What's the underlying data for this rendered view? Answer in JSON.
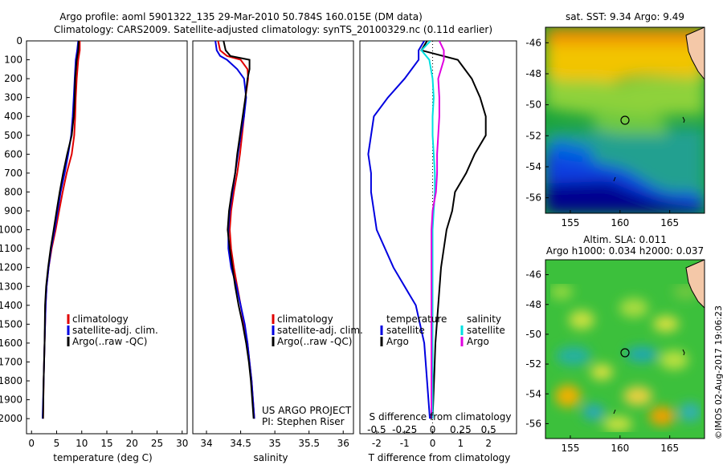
{
  "header": {
    "title_line1": "Argo profile: aoml 5901322_135 29-Mar-2010 50.784S 160.015E (DM data)",
    "title_line2": "Climatology: CARS2009. Satellite-adjusted climatology: synTS_20100329.nc (0.11d earlier)"
  },
  "colors": {
    "climatology": "#e00000",
    "satellite": "#0000e0",
    "argo": "#000000",
    "sat_salinity": "#00e0e0",
    "argo_salinity": "#e000e0"
  },
  "footer": {
    "project": "US ARGO PROJECT",
    "pi": "PI: Stephen Riser",
    "timestamp": "©IMOS 02-Aug-2017 19:06:23"
  },
  "legend_temp": {
    "items": [
      "climatology",
      "satellite-adj. clim.",
      "Argo(..raw -QC)"
    ]
  },
  "legend_sal": {
    "items": [
      "climatology",
      "satellite-adj. clim.",
      "Argo(..raw -QC)"
    ]
  },
  "legend_diff": {
    "temperature": "temperature",
    "salinity": "salinity",
    "satellite": "satellite",
    "argo": "Argo"
  },
  "chart_data": [
    {
      "type": "line",
      "xlabel": "temperature (deg C)",
      "ylim": [
        0,
        2080
      ],
      "xlim": [
        -1,
        31
      ],
      "xticks": [
        "0",
        "5",
        "10",
        "15",
        "20",
        "25",
        "30"
      ],
      "yticks": [
        "0",
        "100",
        "200",
        "300",
        "400",
        "500",
        "600",
        "700",
        "800",
        "900",
        "1000",
        "1100",
        "1200",
        "1300",
        "1400",
        "1500",
        "1600",
        "1700",
        "1800",
        "1900",
        "2000"
      ],
      "depth": [
        0,
        50,
        100,
        200,
        300,
        400,
        500,
        600,
        700,
        800,
        900,
        1000,
        1100,
        1200,
        1300,
        1400,
        1600,
        1800,
        2000
      ],
      "series": [
        {
          "name": "climatology",
          "values": [
            9.6,
            9.6,
            9.3,
            9.0,
            8.8,
            8.7,
            8.5,
            8.0,
            7.0,
            6.2,
            5.5,
            4.8,
            4.0,
            3.4,
            3.0,
            2.8,
            2.6,
            2.4,
            2.3
          ]
        },
        {
          "name": "satellite-adj. clim.",
          "values": [
            9.3,
            9.1,
            8.8,
            8.6,
            8.4,
            8.2,
            7.9,
            7.3,
            6.6,
            5.8,
            5.2,
            4.6,
            3.9,
            3.4,
            3.0,
            2.8,
            2.6,
            2.4,
            2.2
          ]
        },
        {
          "name": "Argo(..raw -QC)",
          "values": [
            9.4,
            9.3,
            9.0,
            8.7,
            8.6,
            8.4,
            8.0,
            7.1,
            6.3,
            5.6,
            5.0,
            4.4,
            3.8,
            3.3,
            2.9,
            2.7,
            2.6,
            2.4,
            2.3
          ]
        }
      ]
    },
    {
      "type": "line",
      "xlabel": "salinity",
      "xlim": [
        33.8,
        36.15
      ],
      "xticks": [
        "34",
        "34.5",
        "35",
        "35.5",
        "36"
      ],
      "depth": [
        0,
        50,
        80,
        100,
        150,
        200,
        300,
        400,
        500,
        600,
        700,
        800,
        900,
        1000,
        1100,
        1200,
        1300,
        1400,
        1500,
        1600,
        1700,
        1800,
        1900,
        2000
      ],
      "series": [
        {
          "name": "climatology",
          "values": [
            34.17,
            34.2,
            34.3,
            34.5,
            34.6,
            34.61,
            34.57,
            34.55,
            34.52,
            34.49,
            34.45,
            34.4,
            34.36,
            34.34,
            34.36,
            34.4,
            34.45,
            34.5,
            34.55,
            34.6,
            34.63,
            34.66,
            34.68,
            34.7
          ]
        },
        {
          "name": "satellite-adj. clim.",
          "values": [
            34.13,
            34.15,
            34.2,
            34.3,
            34.45,
            34.55,
            34.58,
            34.55,
            34.5,
            34.46,
            34.42,
            34.38,
            34.34,
            34.32,
            34.32,
            34.36,
            34.44,
            34.5,
            34.56,
            34.6,
            34.63,
            34.66,
            34.68,
            34.7
          ]
        },
        {
          "name": "Argo(..raw -QC)",
          "values": [
            34.25,
            34.28,
            34.35,
            34.63,
            34.63,
            34.6,
            34.57,
            34.53,
            34.49,
            34.45,
            34.42,
            34.37,
            34.33,
            34.31,
            34.34,
            34.38,
            34.42,
            34.47,
            34.53,
            34.58,
            34.62,
            34.65,
            34.67,
            34.69
          ]
        }
      ]
    },
    {
      "type": "line",
      "xlabel": "T difference from climatology",
      "x2label": "S difference from climatology",
      "xlim": [
        -2.6,
        3.0
      ],
      "xticks": [
        "-2",
        "-1",
        "0",
        "1",
        "2"
      ],
      "x2lim": [
        -0.65,
        0.75
      ],
      "x2ticks": [
        "-0.5",
        "-0.25",
        "0",
        "0.25",
        "0.5"
      ],
      "depth": [
        0,
        50,
        100,
        200,
        300,
        400,
        500,
        600,
        700,
        800,
        900,
        1000,
        1200,
        1400,
        1600,
        1800,
        2000
      ],
      "series": [
        {
          "name": "T satellite",
          "values": [
            -0.3,
            -0.5,
            -0.5,
            -1.0,
            -1.6,
            -2.1,
            -2.2,
            -2.3,
            -2.2,
            -2.2,
            -2.1,
            -2.0,
            -1.4,
            -0.6,
            -0.3,
            -0.2,
            -0.1
          ]
        },
        {
          "name": "T Argo",
          "values": [
            -0.2,
            -0.4,
            0.9,
            1.4,
            1.7,
            1.9,
            1.9,
            1.5,
            1.2,
            0.8,
            0.7,
            0.5,
            0.3,
            0.2,
            0.1,
            0.05,
            0.0
          ]
        },
        {
          "name": "S satellite",
          "values": [
            -0.02,
            -0.1,
            -0.03,
            0.0,
            0.01,
            0.0,
            0.0,
            0.01,
            0.02,
            0.02,
            0.01,
            0.0,
            0.0,
            0.0,
            0.0,
            0.0,
            0.0
          ]
        },
        {
          "name": "S Argo",
          "values": [
            0.06,
            0.1,
            0.1,
            0.05,
            0.06,
            0.06,
            0.05,
            0.04,
            0.04,
            0.03,
            0.0,
            -0.01,
            -0.01,
            -0.01,
            -0.01,
            -0.01,
            -0.01
          ]
        }
      ]
    },
    {
      "type": "heatmap",
      "title": "sat. SST: 9.34  Argo: 9.49",
      "xticks": [
        "155",
        "160",
        "165"
      ],
      "yticks": [
        "-46",
        "-48",
        "-50",
        "-52",
        "-54",
        "-56"
      ],
      "xlim": [
        152.5,
        168.5
      ],
      "ylim": [
        -57,
        -45
      ]
    },
    {
      "type": "heatmap",
      "title_line1": "Altim. SLA: 0.011",
      "title_line2": "Argo h1000: 0.034 h2000: 0.037",
      "xticks": [
        "155",
        "160",
        "165"
      ],
      "yticks": [
        "-46",
        "-48",
        "-50",
        "-52",
        "-54",
        "-56"
      ],
      "xlim": [
        152.5,
        168.5
      ],
      "ylim": [
        -57,
        -45
      ]
    }
  ]
}
